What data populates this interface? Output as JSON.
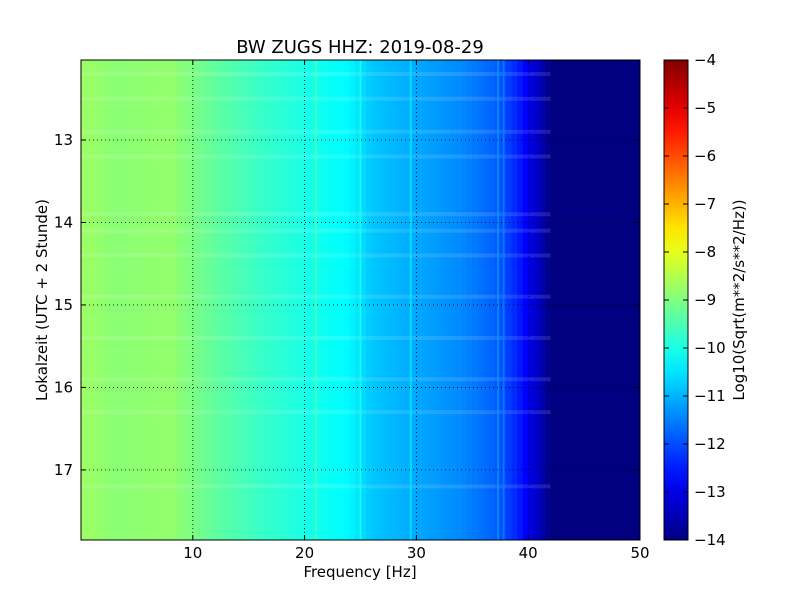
{
  "chart_data": {
    "type": "heatmap",
    "title": "BW ZUGS HHZ: 2019-08-29",
    "xlabel": "Frequency [Hz]",
    "ylabel": "Lokalzeit (UTC + 2 Stunde)",
    "xlim": [
      0,
      50
    ],
    "ylim": [
      12.03,
      17.85
    ],
    "y_inverted": true,
    "x_ticks": [
      10,
      20,
      30,
      40,
      50
    ],
    "y_ticks": [
      13,
      14,
      15,
      16,
      17
    ],
    "grid": true,
    "grid_style": "dotted",
    "colormap": "jet",
    "colorbar": {
      "label": "Log10(Sqrt(m**2/s**2/Hz))",
      "range": [
        -14,
        -4
      ],
      "ticks": [
        -4,
        -5,
        -6,
        -7,
        -8,
        -9,
        -10,
        -11,
        -12,
        -13,
        -14
      ]
    },
    "spectrum_profile": {
      "frequency_hz": [
        0,
        3,
        8,
        12,
        16,
        20,
        24,
        26,
        30,
        34,
        37,
        39,
        41,
        42,
        50
      ],
      "log10_amplitude": [
        -8.7,
        -8.9,
        -8.8,
        -9.3,
        -9.7,
        -10.0,
        -10.3,
        -10.8,
        -11.1,
        -11.4,
        -11.8,
        -12.4,
        -13.4,
        -14.0,
        -14.0
      ]
    },
    "noisy_time_bands_hours": [
      12.2,
      12.5,
      12.9,
      13.2,
      13.9,
      14.1,
      14.4,
      14.9,
      15.4,
      15.9,
      16.3,
      17.2
    ],
    "spectral_lines_hz": [
      21,
      25,
      29.5,
      37.3,
      37.8
    ]
  }
}
